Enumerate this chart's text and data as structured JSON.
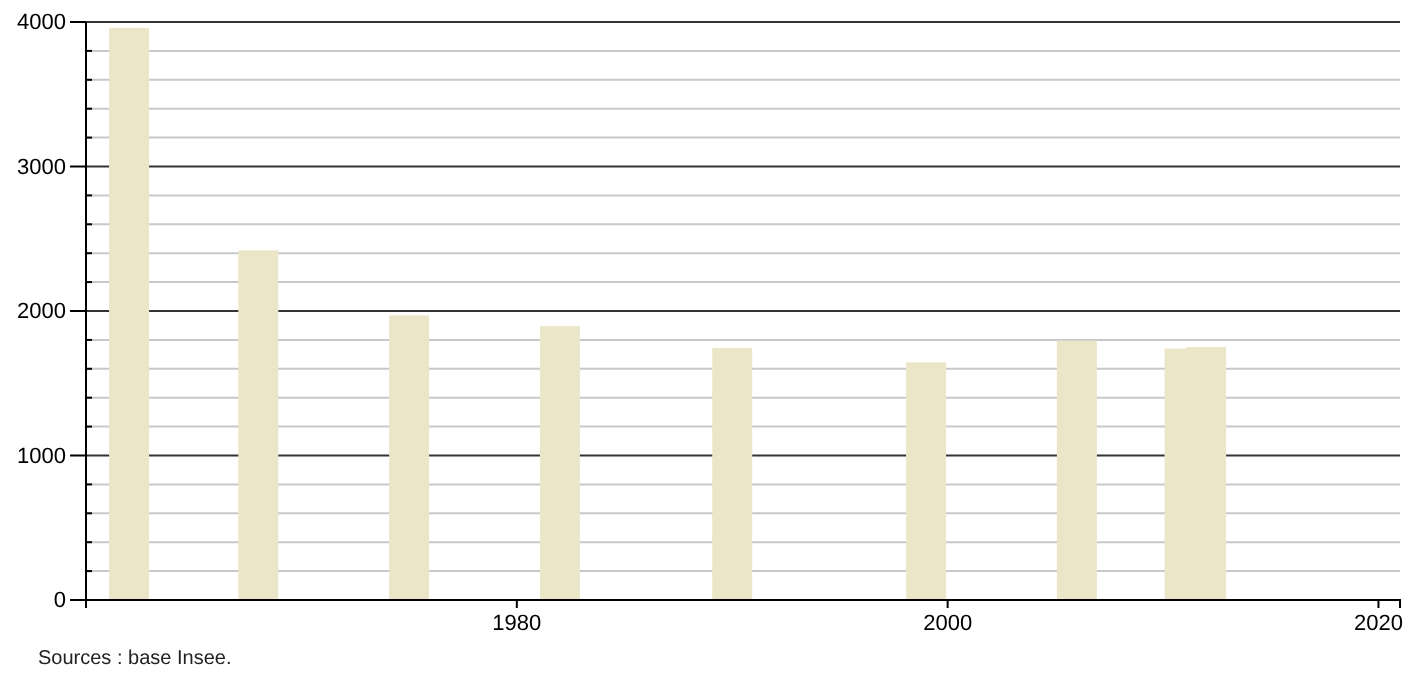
{
  "chart_data": {
    "type": "bar",
    "x": [
      1962,
      1968,
      1975,
      1982,
      1990,
      1999,
      2006,
      2011,
      2012
    ],
    "values": [
      3960,
      2420,
      1970,
      1895,
      1745,
      1645,
      1795,
      1740,
      1750
    ],
    "color": "#ebe6c8",
    "xlim": [
      1960,
      2021
    ],
    "xticks": [
      1980,
      2000,
      2020
    ],
    "ylim": [
      0,
      4000
    ],
    "yticks": [
      0,
      {
        "value": 200,
        "label": null
      },
      {
        "value": 400,
        "label": null
      },
      {
        "value": 600,
        "label": null
      },
      {
        "value": 800,
        "label": null
      },
      1000,
      {
        "value": 1200,
        "label": null
      },
      {
        "value": 1400,
        "label": null
      },
      {
        "value": 1600,
        "label": null
      },
      {
        "value": 1800,
        "label": null
      },
      2000,
      {
        "value": 2200,
        "label": null
      },
      {
        "value": 2400,
        "label": null
      },
      {
        "value": 2600,
        "label": null
      },
      {
        "value": 2800,
        "label": null
      },
      3000,
      {
        "value": 3200,
        "label": null
      },
      {
        "value": 3400,
        "label": null
      },
      {
        "value": 3600,
        "label": null
      },
      {
        "value": 3800,
        "label": null
      },
      4000
    ],
    "grid": "y",
    "annotations": [
      "Sources : base Insee."
    ]
  }
}
